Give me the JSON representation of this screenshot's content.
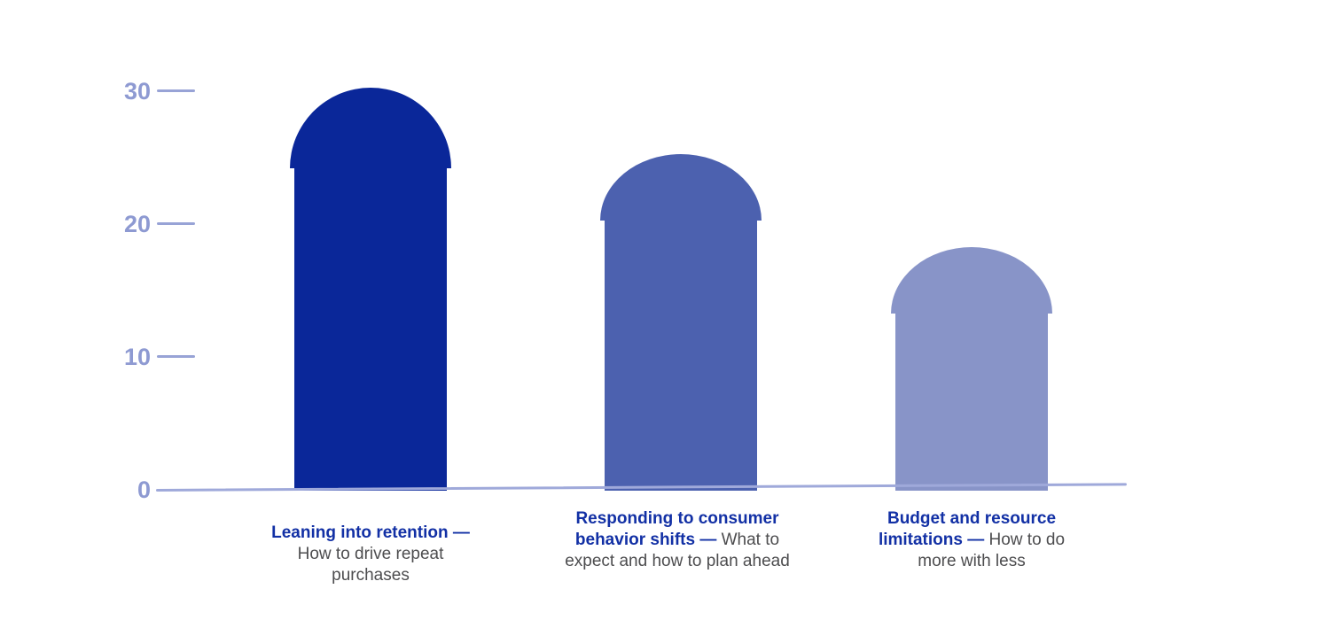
{
  "chart_data": {
    "type": "bar",
    "title": "",
    "xlabel": "",
    "ylabel": "",
    "categories": [
      {
        "bold": "Leaning into retention —",
        "rest": "How to drive repeat purchases"
      },
      {
        "bold": "Responding to consumer behavior shifts —",
        "rest": "What to expect and how to plan ahead"
      },
      {
        "bold": "Budget and resource limitations —",
        "rest": "How to do more with less"
      }
    ],
    "values": [
      30,
      25,
      18
    ],
    "y_ticks": [
      "30",
      "20",
      "10",
      "0"
    ],
    "ylim": [
      0,
      30
    ],
    "grid": false,
    "legend": false,
    "bar_shape": "rounded-dome-top",
    "bar_colors": [
      "#0a2799",
      "#4c61af",
      "#8894c8"
    ],
    "colors": {
      "label_bold": "#1230a5",
      "label_rest": "#4d4d4f",
      "axis_text": "#8e9ad2",
      "tick_dash": "#98a3d6",
      "baseline": "#9fa9da",
      "background": "#ffffff"
    }
  }
}
